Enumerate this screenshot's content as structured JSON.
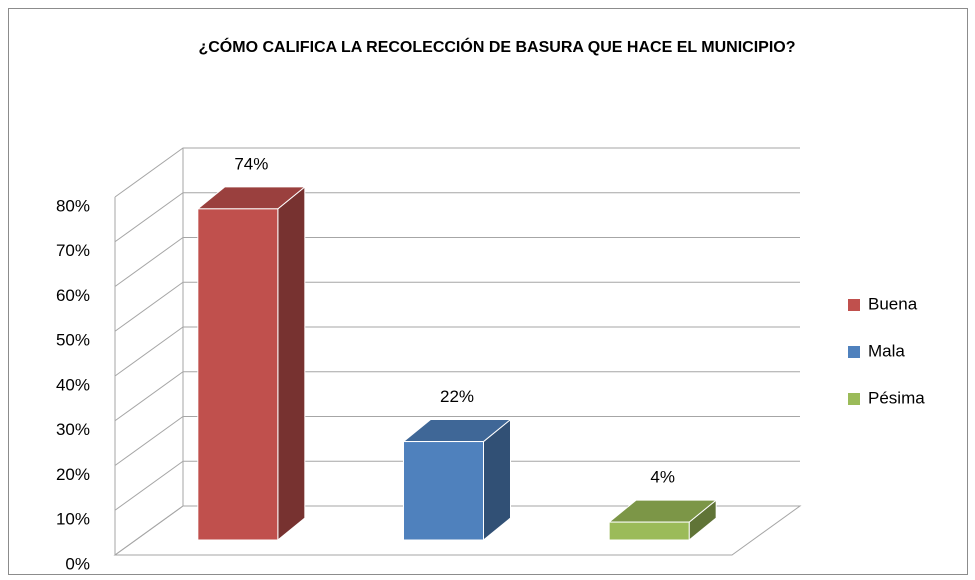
{
  "chart_data": {
    "type": "bar3d",
    "title": "¿CÓMO CALIFICA LA RECOLECCIÓN DE BASURA QUE HACE EL MUNICIPIO?",
    "series": [
      {
        "name": "Buena",
        "color": "#c0504d",
        "values": [
          74
        ],
        "value_labels": [
          "74%"
        ]
      },
      {
        "name": "Mala",
        "color": "#4f81bd",
        "values": [
          22
        ],
        "value_labels": [
          "22%"
        ]
      },
      {
        "name": "Pésima",
        "color": "#9bbb59",
        "values": [
          4
        ],
        "value_labels": [
          "4%"
        ]
      }
    ],
    "ylim": [
      0,
      80
    ],
    "yticks": [
      {
        "value": 0,
        "label": "0%"
      },
      {
        "value": 10,
        "label": "10%"
      },
      {
        "value": 20,
        "label": "20%"
      },
      {
        "value": 30,
        "label": "30%"
      },
      {
        "value": 40,
        "label": "40%"
      },
      {
        "value": 50,
        "label": "50%"
      },
      {
        "value": 60,
        "label": "60%"
      },
      {
        "value": 70,
        "label": "70%"
      },
      {
        "value": 80,
        "label": "80%"
      }
    ],
    "grid": true,
    "legend": "right"
  }
}
